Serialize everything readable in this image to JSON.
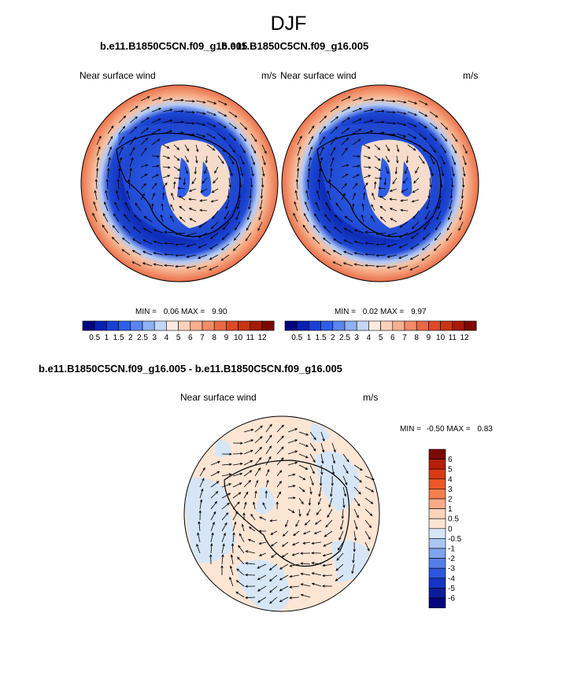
{
  "figure": {
    "season": "DJF"
  },
  "panel_left": {
    "case": "b.e11.B1850C5CN.f09_g16.005",
    "field": "Near surface wind",
    "units": "m/s",
    "min_label": "MIN =",
    "min": "0.06",
    "max_label": "MAX =",
    "max": "9.90"
  },
  "panel_right": {
    "case": "b.e11.B1850C5CN.f09_g16.005",
    "field": "Near surface wind",
    "units": "m/s",
    "min_label": "MIN =",
    "min": "0.02",
    "max_label": "MAX =",
    "max": "9.97"
  },
  "panel_diff": {
    "case": "b.e11.B1850C5CN.f09_g16.005 - b.e11.B1850C5CN.f09_g16.005",
    "field": "Near surface wind",
    "units": "m/s",
    "min_label": "MIN =",
    "min": "-0.50",
    "max_label": "MAX =",
    "max": "0.83"
  },
  "colorbar_abs": {
    "labels": [
      "0.5",
      "1",
      "1.5",
      "2",
      "2.5",
      "3",
      "4",
      "5",
      "6",
      "7",
      "8",
      "9",
      "10",
      "11",
      "12"
    ],
    "colors": [
      "#04057f",
      "#0a1fb4",
      "#1840d8",
      "#2e5ee8",
      "#5b84ee",
      "#8fb0f3",
      "#c2d6f8",
      "#fbeadf",
      "#fbd1ba",
      "#f8b08f",
      "#f38b66",
      "#ea6744",
      "#de4a25",
      "#c83512",
      "#a51b08",
      "#7c0a04"
    ]
  },
  "colorbar_diff": {
    "labels": [
      "6",
      "5",
      "4",
      "3",
      "2",
      "1",
      "0.5",
      "0",
      "-0.5",
      "-1",
      "-2",
      "-3",
      "-4",
      "-5",
      "-6"
    ],
    "colors": [
      "#7c0a04",
      "#b51f0a",
      "#d83a14",
      "#ec5826",
      "#f3804f",
      "#f8ab87",
      "#fbd3bb",
      "#fde5d4",
      "#d6e6f6",
      "#a9c7f2",
      "#7ea4ee",
      "#557fe8",
      "#2d57dd",
      "#1435c2",
      "#0a1c98",
      "#04067a"
    ]
  }
}
